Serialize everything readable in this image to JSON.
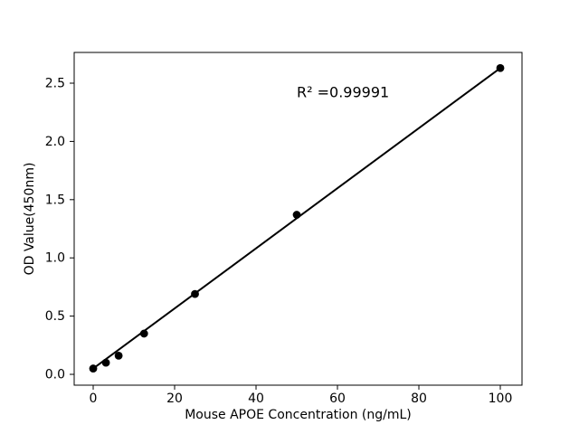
{
  "figure": {
    "background": "#ffffff",
    "frame_color": "#000000"
  },
  "chart_data": {
    "type": "scatter",
    "xlabel": "Mouse APOE Concentration (ng/mL)",
    "ylabel": "OD Value(450nm)",
    "annotation": {
      "text": "R² =0.99991",
      "x": 50,
      "y": 2.42
    },
    "x": [
      0,
      3.125,
      6.25,
      12.5,
      25,
      50,
      100
    ],
    "y": [
      0.05,
      0.1,
      0.16,
      0.35,
      0.69,
      1.37,
      2.63
    ],
    "fit_line": {
      "x1": 0,
      "y1": 0.05,
      "x2": 100,
      "y2": 2.63
    },
    "xticks": {
      "values": [
        0,
        20,
        40,
        60,
        80,
        100
      ],
      "labels": [
        "0",
        "20",
        "40",
        "60",
        "80",
        "100"
      ]
    },
    "yticks": {
      "values": [
        0,
        0.5,
        1.0,
        1.5,
        2.0,
        2.5
      ],
      "labels": [
        "0.0",
        "0.5",
        "1.0",
        "1.5",
        "2.0",
        "2.5"
      ]
    },
    "xlim": [
      -4.67,
      105.33
    ],
    "ylim": [
      -0.093,
      2.764
    ],
    "grid": false,
    "marker_color": "#000000",
    "line_color": "#000000"
  }
}
